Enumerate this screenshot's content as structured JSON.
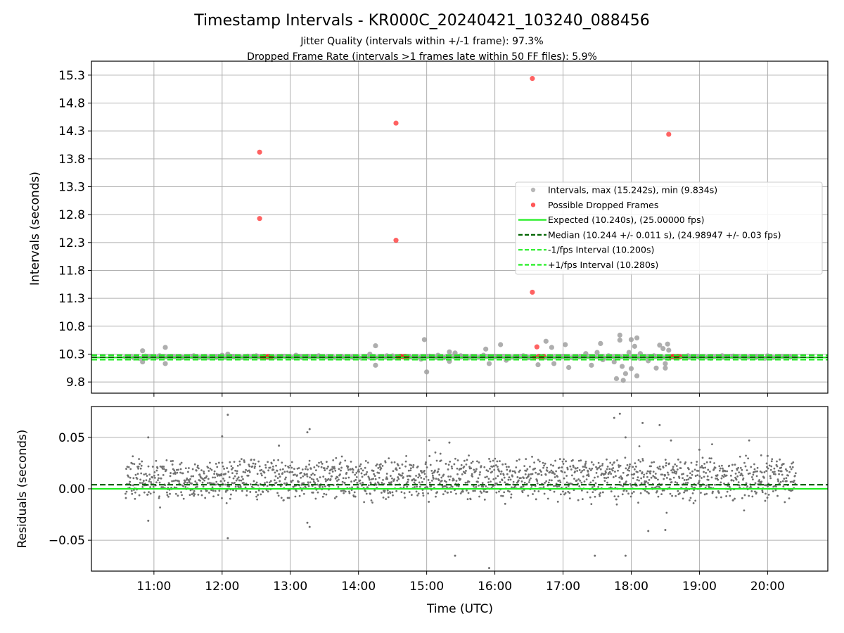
{
  "chart_data": [
    {
      "type": "scatter",
      "title": "Timestamp Intervals - KR000C_20240421_103240_088456",
      "subtitle_lines": [
        "Jitter Quality (intervals within +/-1 frame): 97.3%",
        "Dropped Frame Rate (intervals >1 frames late within 50 FF files): 5.9%"
      ],
      "xlabel": "",
      "ylabel": "Intervals (seconds)",
      "x_axis": "time",
      "xlim": [
        "10:05",
        "20:53"
      ],
      "ylim": [
        9.6,
        15.55
      ],
      "yticks": [
        9.8,
        10.3,
        10.8,
        11.3,
        11.8,
        12.3,
        12.8,
        13.3,
        13.8,
        14.3,
        14.8,
        15.3
      ],
      "ytick_labels": [
        "9.8",
        "10.3",
        "10.8",
        "11.3",
        "11.8",
        "12.3",
        "12.8",
        "13.3",
        "13.8",
        "14.3",
        "14.8",
        "15.3"
      ],
      "grid": true,
      "legend_position": "center-right",
      "series": [
        {
          "name": "Intervals, max (15.242s), min (9.834s)",
          "kind": "scatter",
          "color": "#a0a0a0",
          "points": [
            [
              "10:50",
              10.36
            ],
            [
              "10:50",
              10.16
            ],
            [
              "10:55",
              10.24
            ],
            [
              "11:05",
              10.27
            ],
            [
              "11:10",
              10.42
            ],
            [
              "11:10",
              10.13
            ],
            [
              "11:15",
              10.26
            ],
            [
              "11:25",
              10.24
            ],
            [
              "11:35",
              10.27
            ],
            [
              "11:45",
              10.26
            ],
            [
              "11:55",
              10.24
            ],
            [
              "12:00",
              10.28
            ],
            [
              "12:05",
              10.3
            ],
            [
              "12:10",
              10.25
            ],
            [
              "12:20",
              10.24
            ],
            [
              "12:30",
              10.27
            ],
            [
              "12:50",
              10.26
            ],
            [
              "13:05",
              10.28
            ],
            [
              "13:10",
              10.24
            ],
            [
              "13:15",
              10.26
            ],
            [
              "13:25",
              10.27
            ],
            [
              "13:35",
              10.25
            ],
            [
              "13:45",
              10.26
            ],
            [
              "13:55",
              10.24
            ],
            [
              "14:05",
              10.26
            ],
            [
              "14:10",
              10.3
            ],
            [
              "14:15",
              10.45
            ],
            [
              "14:15",
              10.1
            ],
            [
              "14:25",
              10.27
            ],
            [
              "14:30",
              10.24
            ],
            [
              "14:45",
              10.25
            ],
            [
              "14:55",
              10.21
            ],
            [
              "14:58",
              10.56
            ],
            [
              "15:00",
              9.98
            ],
            [
              "15:10",
              10.28
            ],
            [
              "15:15",
              10.24
            ],
            [
              "15:20",
              10.17
            ],
            [
              "15:20",
              10.34
            ],
            [
              "15:25",
              10.32
            ],
            [
              "15:30",
              10.27
            ],
            [
              "15:40",
              10.25
            ],
            [
              "15:50",
              10.28
            ],
            [
              "15:52",
              10.39
            ],
            [
              "15:55",
              10.13
            ],
            [
              "16:00",
              10.26
            ],
            [
              "16:05",
              10.47
            ],
            [
              "16:10",
              10.19
            ],
            [
              "16:20",
              10.25
            ],
            [
              "16:25",
              10.27
            ],
            [
              "16:30",
              10.24
            ],
            [
              "16:38",
              10.11
            ],
            [
              "16:45",
              10.53
            ],
            [
              "16:48",
              10.26
            ],
            [
              "16:50",
              10.42
            ],
            [
              "16:52",
              10.13
            ],
            [
              "17:00",
              10.26
            ],
            [
              "17:02",
              10.47
            ],
            [
              "17:05",
              10.06
            ],
            [
              "17:15",
              10.25
            ],
            [
              "17:20",
              10.31
            ],
            [
              "17:25",
              10.1
            ],
            [
              "17:30",
              10.33
            ],
            [
              "17:33",
              10.49
            ],
            [
              "17:35",
              10.2
            ],
            [
              "17:40",
              10.27
            ],
            [
              "17:45",
              10.16
            ],
            [
              "17:47",
              9.86
            ],
            [
              "17:50",
              10.55
            ],
            [
              "17:50",
              10.64
            ],
            [
              "17:52",
              10.08
            ],
            [
              "17:53",
              9.83
            ],
            [
              "17:55",
              9.95
            ],
            [
              "17:58",
              10.33
            ],
            [
              "18:00",
              10.56
            ],
            [
              "18:00",
              10.04
            ],
            [
              "18:03",
              10.44
            ],
            [
              "18:05",
              10.59
            ],
            [
              "18:05",
              9.91
            ],
            [
              "18:08",
              10.31
            ],
            [
              "18:15",
              10.18
            ],
            [
              "18:20",
              10.27
            ],
            [
              "18:22",
              10.05
            ],
            [
              "18:25",
              10.46
            ],
            [
              "18:28",
              10.4
            ],
            [
              "18:30",
              10.05
            ],
            [
              "18:30",
              10.13
            ],
            [
              "18:32",
              10.48
            ],
            [
              "18:33",
              10.37
            ],
            [
              "18:40",
              10.25
            ],
            [
              "18:50",
              10.27
            ],
            [
              "19:00",
              10.24
            ],
            [
              "19:10",
              10.26
            ],
            [
              "19:20",
              10.27
            ],
            [
              "19:30",
              10.25
            ],
            [
              "19:40",
              10.26
            ],
            [
              "19:50",
              10.24
            ],
            [
              "20:00",
              10.27
            ],
            [
              "20:10",
              10.26
            ],
            [
              "20:20",
              10.25
            ]
          ]
        },
        {
          "name": "Possible Dropped Frames",
          "kind": "scatter",
          "color": "#ff2020",
          "points": [
            [
              "12:33",
              13.92
            ],
            [
              "12:33",
              12.73
            ],
            [
              "12:35",
              10.25
            ],
            [
              "12:37",
              10.26
            ],
            [
              "12:39",
              10.25
            ],
            [
              "12:41",
              10.26
            ],
            [
              "12:43",
              10.25
            ],
            [
              "14:33",
              14.44
            ],
            [
              "14:33",
              12.34
            ],
            [
              "14:35",
              10.25
            ],
            [
              "14:37",
              10.26
            ],
            [
              "14:39",
              10.25
            ],
            [
              "14:41",
              10.26
            ],
            [
              "14:43",
              10.25
            ],
            [
              "16:33",
              15.24
            ],
            [
              "16:33",
              11.41
            ],
            [
              "16:35",
              10.25
            ],
            [
              "16:37",
              10.43
            ],
            [
              "16:39",
              10.26
            ],
            [
              "16:41",
              10.25
            ],
            [
              "16:43",
              10.26
            ],
            [
              "18:33",
              14.24
            ],
            [
              "18:35",
              10.25
            ],
            [
              "18:37",
              10.26
            ],
            [
              "18:39",
              10.25
            ],
            [
              "18:41",
              10.26
            ],
            [
              "18:43",
              10.25
            ]
          ]
        },
        {
          "name": "Expected (10.240s), (25.00000 fps)",
          "kind": "hline",
          "value": 10.24,
          "color": "#22ee22",
          "dash": "solid"
        },
        {
          "name": "Median (10.244 +/- 0.011 s), (24.98947 +/- 0.03 fps)",
          "kind": "hline",
          "value": 10.244,
          "color": "#006400",
          "dash": "dashed"
        },
        {
          "name": "-1/fps Interval (10.200s)",
          "kind": "hline",
          "value": 10.2,
          "color": "#22ee22",
          "dash": "dashed"
        },
        {
          "name": "+1/fps Interval (10.280s)",
          "kind": "hline",
          "value": 10.28,
          "color": "#22ee22",
          "dash": "dashed"
        }
      ]
    },
    {
      "type": "scatter",
      "title": "",
      "xlabel": "Time (UTC)",
      "ylabel": "Residuals (seconds)",
      "x_axis": "time",
      "xlim": [
        "10:05",
        "20:53"
      ],
      "ylim": [
        -0.08,
        0.08
      ],
      "yticks": [
        -0.05,
        0.0,
        0.05
      ],
      "ytick_labels": [
        "−0.05",
        "0.00",
        "0.05"
      ],
      "xticks": [
        "11:00",
        "12:00",
        "13:00",
        "14:00",
        "15:00",
        "16:00",
        "17:00",
        "18:00",
        "19:00",
        "20:00"
      ],
      "grid": true,
      "series": [
        {
          "name": "",
          "kind": "scatter",
          "color": "#707070",
          "range": [
            "10:35",
            "20:25"
          ],
          "bands": [
            0.018,
            0.002
          ],
          "spread": 0.006,
          "outliers": [
            [
              "10:55",
              0.05
            ],
            [
              "10:55",
              -0.031
            ],
            [
              "12:00",
              0.051
            ],
            [
              "12:05",
              0.072
            ],
            [
              "12:05",
              -0.048
            ],
            [
              "12:50",
              0.042
            ],
            [
              "13:15",
              0.055
            ],
            [
              "13:17",
              0.058
            ],
            [
              "13:15",
              -0.033
            ],
            [
              "13:17",
              -0.037
            ],
            [
              "15:20",
              0.045
            ],
            [
              "15:25",
              -0.065
            ],
            [
              "15:55",
              -0.077
            ],
            [
              "17:28",
              -0.065
            ],
            [
              "17:45",
              0.069
            ],
            [
              "17:50",
              0.073
            ],
            [
              "17:55",
              -0.065
            ],
            [
              "17:55",
              0.05
            ],
            [
              "18:10",
              0.064
            ],
            [
              "18:15",
              -0.041
            ],
            [
              "18:25",
              0.062
            ],
            [
              "18:30",
              -0.04
            ],
            [
              "18:35",
              0.047
            ],
            [
              "19:00",
              0.038
            ],
            [
              "20:00",
              0.032
            ]
          ]
        },
        {
          "name": "",
          "kind": "hline",
          "value": 0.0,
          "color": "#22ee22",
          "dash": "solid"
        },
        {
          "name": "",
          "kind": "hline",
          "value": 0.004,
          "color": "#006400",
          "dash": "dashed"
        }
      ]
    }
  ]
}
